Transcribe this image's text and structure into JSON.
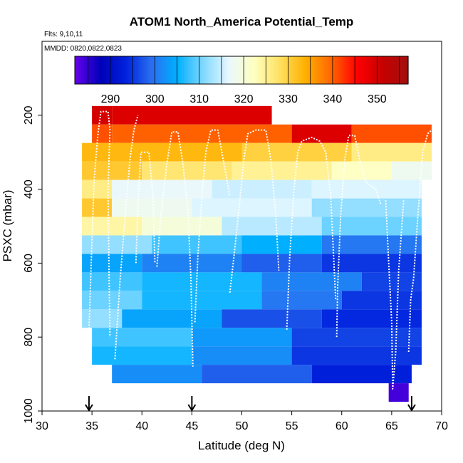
{
  "chart_data": {
    "type": "heatmap",
    "title": "ATOM1 North_America Potential_Temp",
    "subtitle_flights": "Flts: 9,10,11",
    "subtitle_dates": "MMDD: 0820,0822,0823",
    "xlabel": "Latitude (deg N)",
    "ylabel": "PSXC (mbar)",
    "xlim": [
      30,
      70
    ],
    "ylim": [
      1000,
      0
    ],
    "x_ticks": [
      "30",
      "35",
      "40",
      "45",
      "50",
      "55",
      "60",
      "65",
      "70"
    ],
    "y_ticks": [
      "200",
      "400",
      "600",
      "800",
      "1000"
    ],
    "colorbar": {
      "range": [
        282,
        357
      ],
      "ticks": [
        "290",
        "300",
        "310",
        "320",
        "330",
        "340",
        "350"
      ],
      "tick_values": [
        290,
        300,
        310,
        320,
        330,
        340,
        350
      ],
      "colors": [
        "#6600ee",
        "#0000b8",
        "#0022dd",
        "#2a6ff0",
        "#00b0ff",
        "#7fd8ff",
        "#e8f8ff",
        "#ffffc0",
        "#ffe060",
        "#ffb000",
        "#ff6600",
        "#ff0000",
        "#c80000",
        "#a01010"
      ]
    },
    "grid": false,
    "arrow_latitudes": [
      34.7,
      45.0,
      67.0
    ],
    "cells": [
      {
        "x": [
          35,
          37
        ],
        "p": [
          175,
          225
        ],
        "v": 350
      },
      {
        "x": [
          37,
          53
        ],
        "p": [
          175,
          225
        ],
        "v": 349
      },
      {
        "x": [
          35,
          37
        ],
        "p": [
          225,
          275
        ],
        "v": 341
      },
      {
        "x": [
          37,
          55
        ],
        "p": [
          225,
          275
        ],
        "v": 340
      },
      {
        "x": [
          55,
          61
        ],
        "p": [
          225,
          275
        ],
        "v": 349
      },
      {
        "x": [
          61,
          69
        ],
        "p": [
          225,
          275
        ],
        "v": 341
      },
      {
        "x": [
          34,
          50
        ],
        "p": [
          275,
          325
        ],
        "v": 333
      },
      {
        "x": [
          50,
          61
        ],
        "p": [
          275,
          325
        ],
        "v": 330
      },
      {
        "x": [
          61,
          69
        ],
        "p": [
          275,
          325
        ],
        "v": 326
      },
      {
        "x": [
          34,
          40
        ],
        "p": [
          325,
          375
        ],
        "v": 331
      },
      {
        "x": [
          40,
          49
        ],
        "p": [
          325,
          375
        ],
        "v": 327
      },
      {
        "x": [
          49,
          59
        ],
        "p": [
          325,
          375
        ],
        "v": 325
      },
      {
        "x": [
          59,
          65
        ],
        "p": [
          325,
          375
        ],
        "v": 322
      },
      {
        "x": [
          65,
          69
        ],
        "p": [
          325,
          375
        ],
        "v": 318
      },
      {
        "x": [
          34,
          37
        ],
        "p": [
          375,
          425
        ],
        "v": 326
      },
      {
        "x": [
          37,
          47
        ],
        "p": [
          375,
          425
        ],
        "v": 317
      },
      {
        "x": [
          47,
          57
        ],
        "p": [
          375,
          425
        ],
        "v": 315
      },
      {
        "x": [
          57,
          68
        ],
        "p": [
          375,
          425
        ],
        "v": 316
      },
      {
        "x": [
          34,
          37
        ],
        "p": [
          425,
          475
        ],
        "v": 331
      },
      {
        "x": [
          37,
          45
        ],
        "p": [
          425,
          475
        ],
        "v": 318
      },
      {
        "x": [
          45,
          57
        ],
        "p": [
          425,
          475
        ],
        "v": 316
      },
      {
        "x": [
          57,
          68
        ],
        "p": [
          425,
          475
        ],
        "v": 312
      },
      {
        "x": [
          34,
          40
        ],
        "p": [
          475,
          525
        ],
        "v": 324
      },
      {
        "x": [
          40,
          48
        ],
        "p": [
          475,
          525
        ],
        "v": 320
      },
      {
        "x": [
          48,
          58
        ],
        "p": [
          475,
          525
        ],
        "v": 314
      },
      {
        "x": [
          58,
          68
        ],
        "p": [
          475,
          525
        ],
        "v": 310
      },
      {
        "x": [
          34,
          41
        ],
        "p": [
          525,
          575
        ],
        "v": 312
      },
      {
        "x": [
          41,
          50
        ],
        "p": [
          525,
          575
        ],
        "v": 308
      },
      {
        "x": [
          50,
          58
        ],
        "p": [
          525,
          575
        ],
        "v": 305
      },
      {
        "x": [
          58,
          68
        ],
        "p": [
          525,
          575
        ],
        "v": 300
      },
      {
        "x": [
          34,
          40
        ],
        "p": [
          575,
          625
        ],
        "v": 304
      },
      {
        "x": [
          40,
          50
        ],
        "p": [
          575,
          625
        ],
        "v": 301
      },
      {
        "x": [
          50,
          58
        ],
        "p": [
          575,
          625
        ],
        "v": 298
      },
      {
        "x": [
          58,
          68
        ],
        "p": [
          575,
          625
        ],
        "v": 295
      },
      {
        "x": [
          34,
          40
        ],
        "p": [
          625,
          675
        ],
        "v": 308
      },
      {
        "x": [
          40,
          52
        ],
        "p": [
          625,
          675
        ],
        "v": 306
      },
      {
        "x": [
          52,
          62
        ],
        "p": [
          625,
          675
        ],
        "v": 301
      },
      {
        "x": [
          62,
          68
        ],
        "p": [
          625,
          675
        ],
        "v": 296
      },
      {
        "x": [
          34,
          40
        ],
        "p": [
          675,
          725
        ],
        "v": 310
      },
      {
        "x": [
          40,
          52
        ],
        "p": [
          675,
          725
        ],
        "v": 306
      },
      {
        "x": [
          52,
          60
        ],
        "p": [
          675,
          725
        ],
        "v": 300
      },
      {
        "x": [
          60,
          68
        ],
        "p": [
          675,
          725
        ],
        "v": 295
      },
      {
        "x": [
          34,
          38
        ],
        "p": [
          725,
          775
        ],
        "v": 312
      },
      {
        "x": [
          38,
          48
        ],
        "p": [
          725,
          775
        ],
        "v": 304
      },
      {
        "x": [
          48,
          58
        ],
        "p": [
          725,
          775
        ],
        "v": 297
      },
      {
        "x": [
          58,
          68
        ],
        "p": [
          725,
          775
        ],
        "v": 294
      },
      {
        "x": [
          35,
          45
        ],
        "p": [
          775,
          825
        ],
        "v": 308
      },
      {
        "x": [
          45,
          55
        ],
        "p": [
          775,
          825
        ],
        "v": 303
      },
      {
        "x": [
          55,
          68
        ],
        "p": [
          775,
          825
        ],
        "v": 296
      },
      {
        "x": [
          35,
          45
        ],
        "p": [
          825,
          875
        ],
        "v": 306
      },
      {
        "x": [
          45,
          55
        ],
        "p": [
          825,
          875
        ],
        "v": 302
      },
      {
        "x": [
          55,
          68
        ],
        "p": [
          825,
          875
        ],
        "v": 295
      },
      {
        "x": [
          37,
          46
        ],
        "p": [
          875,
          925
        ],
        "v": 302
      },
      {
        "x": [
          46,
          57
        ],
        "p": [
          875,
          925
        ],
        "v": 298
      },
      {
        "x": [
          57,
          67
        ],
        "p": [
          875,
          925
        ],
        "v": 293
      },
      {
        "x": [
          64.7,
          66.7
        ],
        "p": [
          925,
          975
        ],
        "v": 284
      }
    ],
    "flight_profiles": [
      [
        [
          34.6,
          870
        ],
        [
          34.9,
          620
        ],
        [
          35.2,
          380
        ],
        [
          35.6,
          250
        ],
        [
          35.9,
          190
        ],
        [
          36.6,
          190
        ],
        [
          36.8,
          240
        ],
        [
          36.6,
          400
        ],
        [
          36.7,
          620
        ],
        [
          36.8,
          800
        ]
      ],
      [
        [
          37.3,
          860
        ],
        [
          37.8,
          650
        ],
        [
          38.3,
          480
        ],
        [
          38.8,
          320
        ],
        [
          39.2,
          240
        ],
        [
          39.6,
          200
        ]
      ],
      [
        [
          39.4,
          600
        ],
        [
          39.6,
          440
        ],
        [
          39.9,
          300
        ],
        [
          40.7,
          300
        ],
        [
          41.1,
          420
        ],
        [
          41.3,
          600
        ]
      ],
      [
        [
          41.5,
          610
        ],
        [
          41.9,
          470
        ],
        [
          42.5,
          330
        ],
        [
          43.0,
          245
        ],
        [
          43.6,
          245
        ],
        [
          44.1,
          330
        ],
        [
          44.6,
          460
        ],
        [
          44.9,
          640
        ],
        [
          45.1,
          880
        ]
      ],
      [
        [
          45.3,
          760
        ],
        [
          45.6,
          580
        ],
        [
          46.0,
          420
        ],
        [
          46.4,
          300
        ],
        [
          46.9,
          240
        ],
        [
          47.6,
          240
        ],
        [
          48.2,
          330
        ],
        [
          48.8,
          420
        ]
      ],
      [
        [
          48.8,
          680
        ],
        [
          49.3,
          560
        ],
        [
          49.8,
          430
        ],
        [
          50.2,
          320
        ],
        [
          50.6,
          250
        ],
        [
          51.4,
          240
        ],
        [
          52.4,
          240
        ],
        [
          52.9,
          320
        ],
        [
          53.4,
          470
        ],
        [
          53.7,
          620
        ]
      ],
      [
        [
          54.5,
          780
        ],
        [
          54.8,
          580
        ],
        [
          55.2,
          410
        ],
        [
          55.6,
          300
        ],
        [
          56.0,
          270
        ],
        [
          57.0,
          260
        ],
        [
          57.8,
          270
        ],
        [
          58.4,
          300
        ],
        [
          58.9,
          420
        ],
        [
          59.4,
          700
        ]
      ],
      [
        [
          59.5,
          800
        ],
        [
          59.6,
          660
        ],
        [
          59.9,
          470
        ],
        [
          60.3,
          320
        ],
        [
          60.7,
          255
        ],
        [
          61.3,
          255
        ],
        [
          61.8,
          320
        ],
        [
          62.4,
          380
        ],
        [
          63.4,
          400
        ],
        [
          63.9,
          440
        ]
      ],
      [
        [
          64.4,
          430
        ],
        [
          64.7,
          600
        ],
        [
          65.0,
          760
        ],
        [
          65.1,
          940
        ],
        [
          65.4,
          840
        ],
        [
          65.7,
          620
        ],
        [
          66.2,
          430
        ]
      ],
      [
        [
          66.7,
          840
        ],
        [
          66.9,
          700
        ],
        [
          67.2,
          640
        ],
        [
          67.6,
          480
        ],
        [
          68.1,
          300
        ],
        [
          68.6,
          250
        ],
        [
          69.4,
          230
        ],
        [
          70.0,
          230
        ]
      ]
    ]
  }
}
